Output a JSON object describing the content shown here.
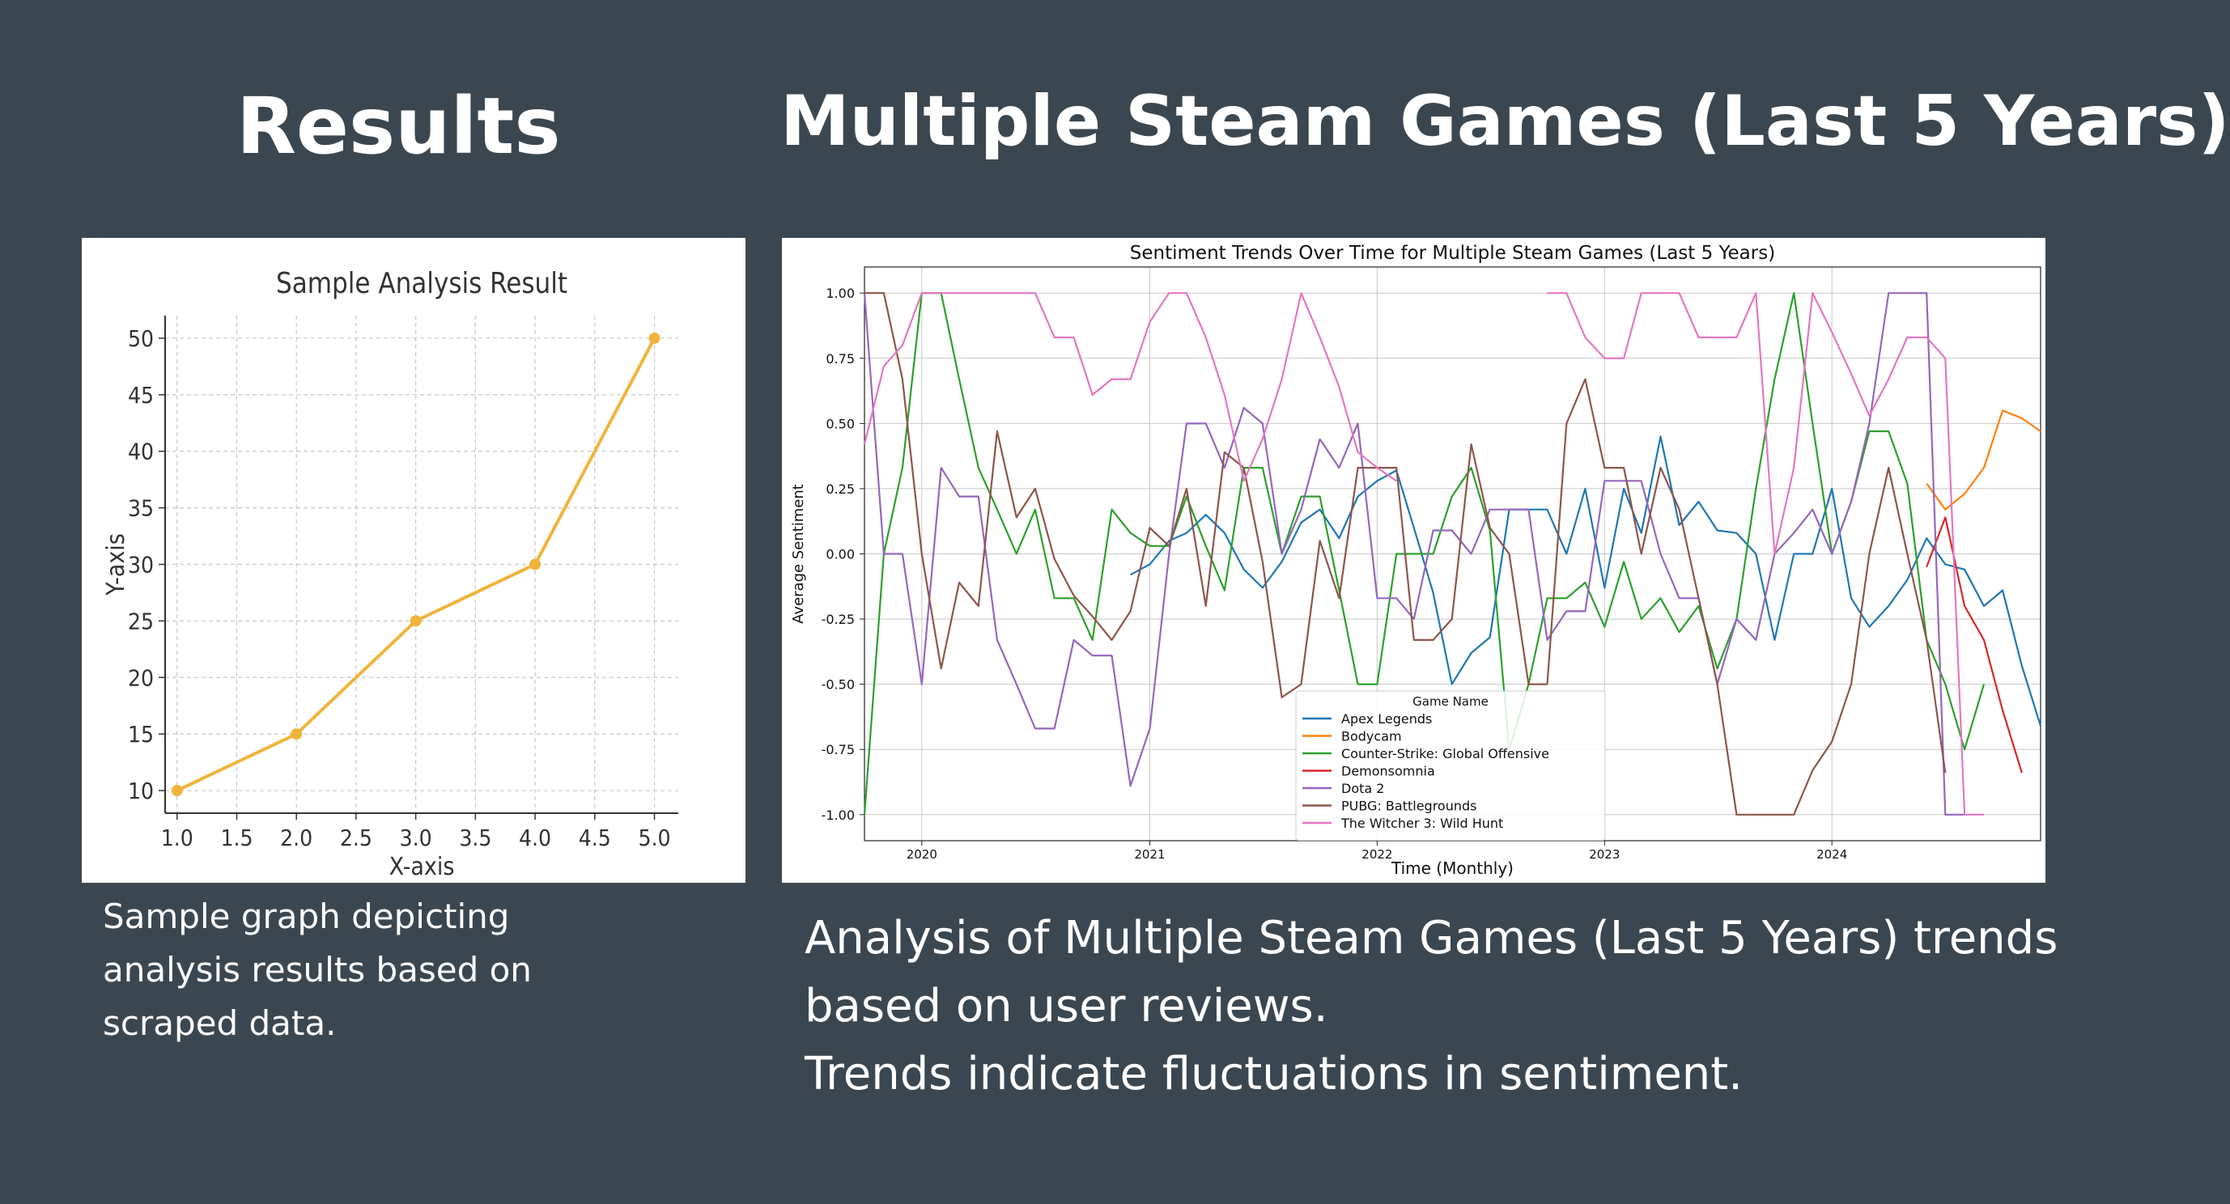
{
  "slide": {
    "title_left": "Results",
    "title_right": "Multiple Steam Games (Last 5 Years)",
    "caption_left": [
      "Sample graph depicting",
      "analysis results based on",
      "scraped data."
    ],
    "caption_right": [
      "Analysis of Multiple Steam Games (Last 5 Years) trends",
      "based on user reviews.",
      "Trends indicate fluctuations in sentiment."
    ]
  },
  "chart_data": [
    {
      "type": "line",
      "title": "Sample Analysis Result",
      "xlabel": "X-axis",
      "ylabel": "Y-axis",
      "x": [
        1,
        2,
        3,
        4,
        5
      ],
      "series": [
        {
          "values": [
            10,
            15,
            25,
            30,
            50
          ],
          "color": "#f0b43c"
        }
      ],
      "xlim": [
        0.9,
        5.2
      ],
      "ylim": [
        8,
        52
      ],
      "xticks": [
        "1.0",
        "1.5",
        "2.0",
        "2.5",
        "3.0",
        "3.5",
        "4.0",
        "4.5",
        "5.0"
      ],
      "yticks": [
        "10",
        "15",
        "20",
        "25",
        "30",
        "35",
        "40",
        "45",
        "50"
      ],
      "grid": true,
      "marker": "circle"
    },
    {
      "type": "line",
      "title": "Sentiment Trends Over Time for Multiple Steam Games (Last 5 Years)",
      "xlabel": "Time (Monthly)",
      "ylabel": "Average Sentiment",
      "x": [
        "2019-10",
        "2019-11",
        "2019-12",
        "2020-01",
        "2020-02",
        "2020-03",
        "2020-04",
        "2020-05",
        "2020-06",
        "2020-07",
        "2020-08",
        "2020-09",
        "2020-10",
        "2020-11",
        "2020-12",
        "2021-01",
        "2021-02",
        "2021-03",
        "2021-04",
        "2021-05",
        "2021-06",
        "2021-07",
        "2021-08",
        "2021-09",
        "2021-10",
        "2021-11",
        "2021-12",
        "2022-01",
        "2022-02",
        "2022-03",
        "2022-04",
        "2022-05",
        "2022-06",
        "2022-07",
        "2022-08",
        "2022-09",
        "2022-10",
        "2022-11",
        "2022-12",
        "2023-01",
        "2023-02",
        "2023-03",
        "2023-04",
        "2023-05",
        "2023-06",
        "2023-07",
        "2023-08",
        "2023-09",
        "2023-10",
        "2023-11",
        "2023-12",
        "2024-01",
        "2024-02",
        "2024-03",
        "2024-04",
        "2024-05",
        "2024-06",
        "2024-07",
        "2024-08",
        "2024-09",
        "2024-10",
        "2024-11",
        "2024-12"
      ],
      "xticks": [
        "2020",
        "2021",
        "2022",
        "2023",
        "2024"
      ],
      "yticks": [
        "1.00",
        "0.75",
        "0.50",
        "0.25",
        "0.00",
        "-0.25",
        "-0.50",
        "-0.75",
        "-1.00"
      ],
      "ylim": [
        -1.1,
        1.1
      ],
      "grid": true,
      "legend_title": "Game Name",
      "legend_position": "bottom-center",
      "series": [
        {
          "name": "Apex Legends",
          "color": "#1f77b4",
          "values": [
            null,
            null,
            null,
            null,
            null,
            null,
            null,
            null,
            null,
            null,
            null,
            null,
            null,
            null,
            -0.08,
            -0.04,
            0.05,
            0.08,
            0.15,
            0.08,
            -0.06,
            -0.13,
            -0.03,
            0.12,
            0.17,
            0.06,
            0.22,
            0.28,
            0.32,
            0.1,
            -0.15,
            -0.5,
            -0.38,
            -0.32,
            0.17,
            0.17,
            0.17,
            0.0,
            0.25,
            -0.13,
            0.25,
            0.08,
            0.45,
            0.11,
            0.2,
            0.09,
            0.08,
            0.0,
            -0.33,
            0.0,
            0.0,
            0.25,
            -0.17,
            -0.28,
            -0.2,
            -0.1,
            0.06,
            -0.04,
            -0.06,
            -0.2,
            -0.14,
            -0.43,
            -0.66
          ]
        },
        {
          "name": "Bodycam",
          "color": "#ff7f0e",
          "values": [
            null,
            null,
            null,
            null,
            null,
            null,
            null,
            null,
            null,
            null,
            null,
            null,
            null,
            null,
            null,
            null,
            null,
            null,
            null,
            null,
            null,
            null,
            null,
            null,
            null,
            null,
            null,
            null,
            null,
            null,
            null,
            null,
            null,
            null,
            null,
            null,
            null,
            null,
            null,
            null,
            null,
            null,
            null,
            null,
            null,
            null,
            null,
            null,
            null,
            null,
            null,
            null,
            null,
            null,
            null,
            null,
            0.27,
            0.17,
            0.23,
            0.33,
            0.55,
            0.52,
            0.47
          ]
        },
        {
          "name": "Counter-Strike: Global Offensive",
          "color": "#2ca02c",
          "values": [
            -1.0,
            0.0,
            0.33,
            1.0,
            1.0,
            0.67,
            0.33,
            0.17,
            0.0,
            0.17,
            -0.17,
            -0.17,
            -0.33,
            0.17,
            0.08,
            0.03,
            0.03,
            0.22,
            0.03,
            -0.14,
            0.33,
            0.33,
            0.0,
            0.22,
            0.22,
            -0.14,
            -0.5,
            -0.5,
            0.0,
            0.0,
            0.0,
            0.22,
            0.33,
            0.09,
            -0.75,
            -0.5,
            -0.17,
            -0.17,
            -0.11,
            -0.28,
            -0.03,
            -0.25,
            -0.17,
            -0.3,
            -0.2,
            -0.44,
            -0.25,
            0.25,
            0.67,
            1.0,
            0.5,
            0.0,
            0.2,
            0.47,
            0.47,
            0.27,
            -0.33,
            -0.5,
            -0.75,
            -0.5,
            null,
            null,
            null
          ]
        },
        {
          "name": "Demonsomnia",
          "color": "#d62728",
          "values": [
            null,
            null,
            null,
            null,
            null,
            null,
            null,
            null,
            null,
            null,
            null,
            null,
            null,
            null,
            null,
            null,
            null,
            null,
            null,
            null,
            null,
            null,
            null,
            null,
            null,
            null,
            null,
            null,
            null,
            null,
            null,
            null,
            null,
            null,
            null,
            null,
            null,
            null,
            null,
            null,
            null,
            null,
            null,
            null,
            null,
            null,
            null,
            null,
            null,
            null,
            null,
            null,
            null,
            null,
            null,
            null,
            -0.05,
            0.14,
            -0.2,
            -0.33,
            -0.6,
            -0.84,
            null
          ]
        },
        {
          "name": "Dota 2",
          "color": "#9467bd",
          "values": [
            1.0,
            0.0,
            0.0,
            -0.5,
            0.33,
            0.22,
            0.22,
            -0.33,
            -0.5,
            -0.67,
            -0.67,
            -0.33,
            -0.39,
            -0.39,
            -0.89,
            -0.67,
            0.0,
            0.5,
            0.5,
            0.33,
            0.56,
            0.5,
            0.0,
            0.17,
            0.44,
            0.33,
            0.5,
            -0.17,
            -0.17,
            -0.25,
            0.09,
            0.09,
            0.0,
            0.17,
            0.17,
            0.17,
            -0.33,
            -0.22,
            -0.22,
            0.28,
            0.28,
            0.28,
            0.0,
            -0.17,
            -0.17,
            -0.5,
            -0.25,
            -0.33,
            0.0,
            0.08,
            0.17,
            0.0,
            0.2,
            0.5,
            1.0,
            1.0,
            1.0,
            -1.0,
            -1.0,
            null,
            null,
            null,
            null
          ]
        },
        {
          "name": "PUBG: Battlegrounds",
          "color": "#8c564b",
          "values": [
            1.0,
            1.0,
            0.67,
            0.0,
            -0.44,
            -0.11,
            -0.2,
            0.47,
            0.14,
            0.25,
            -0.02,
            -0.16,
            -0.24,
            -0.33,
            -0.22,
            0.1,
            0.03,
            0.25,
            -0.2,
            0.39,
            0.33,
            -0.03,
            -0.55,
            -0.5,
            0.05,
            -0.17,
            0.33,
            0.33,
            0.33,
            -0.33,
            -0.33,
            -0.25,
            0.42,
            0.1,
            0.0,
            -0.5,
            -0.5,
            0.5,
            0.67,
            0.33,
            0.33,
            0.0,
            0.33,
            0.17,
            -0.17,
            -0.5,
            -1.0,
            -1.0,
            -1.0,
            -1.0,
            -0.83,
            -0.72,
            -0.5,
            0.0,
            0.33,
            0.0,
            -0.33,
            -0.84,
            null,
            null,
            null,
            null,
            null
          ]
        },
        {
          "name": "The Witcher 3: Wild Hunt",
          "color": "#e377c2",
          "values": [
            0.42,
            0.72,
            0.8,
            1.0,
            1.0,
            1.0,
            1.0,
            1.0,
            1.0,
            1.0,
            0.83,
            0.83,
            0.61,
            0.67,
            0.67,
            0.89,
            1.0,
            1.0,
            0.83,
            0.61,
            0.28,
            0.44,
            0.67,
            1.0,
            0.83,
            0.64,
            0.39,
            0.33,
            0.28,
            null,
            null,
            null,
            null,
            null,
            null,
            null,
            1.0,
            1.0,
            0.83,
            0.75,
            0.75,
            1.0,
            1.0,
            1.0,
            0.83,
            0.83,
            0.83,
            1.0,
            0.0,
            0.33,
            1.0,
            0.85,
            0.69,
            0.53,
            0.67,
            0.83,
            0.83,
            0.75,
            -1.0,
            -1.0,
            null,
            null,
            null
          ]
        }
      ]
    }
  ]
}
